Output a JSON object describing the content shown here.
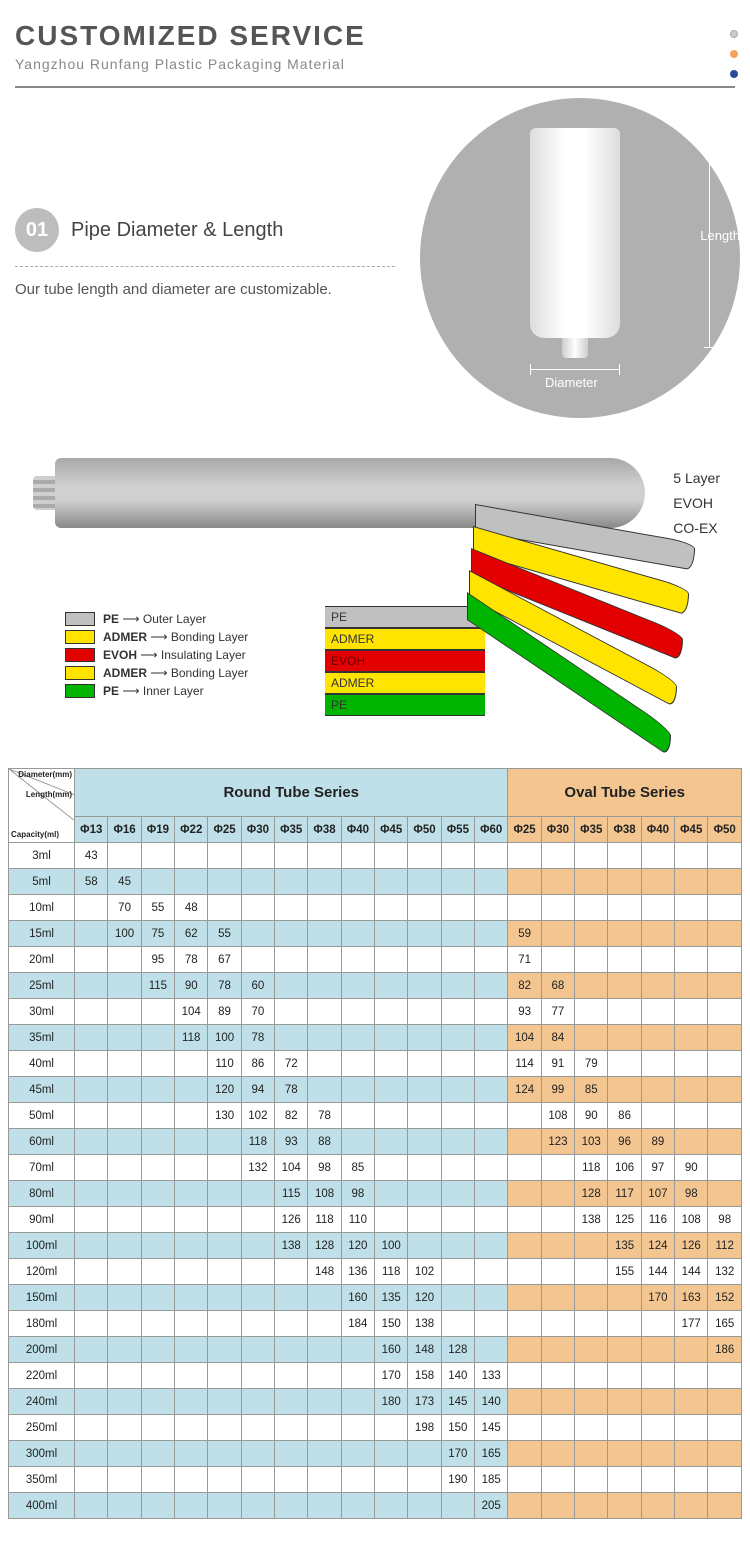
{
  "header": {
    "title": "CUSTOMIZED SERVICE",
    "subtitle": "Yangzhou Runfang Plastic Packaging Material"
  },
  "dots_colors": [
    "#cccccc",
    "#f5a35c",
    "#2a4b9b"
  ],
  "section1": {
    "badge": "01",
    "title": "Pipe Diameter & Length",
    "desc": "Our tube length and diameter are customizable.",
    "length_label": "Length",
    "diameter_label": "Diameter"
  },
  "diagram": {
    "side_labels": [
      "5 Layer",
      "EVOH",
      "CO-EX"
    ],
    "layer_names": [
      "PE",
      "ADMER",
      "EVOH",
      "ADMER",
      "PE"
    ],
    "layer_colors": [
      "#c0c0c0",
      "#ffe400",
      "#e30000",
      "#ffe400",
      "#00b400"
    ],
    "legend": [
      {
        "code": "PE",
        "desc": "Outer Layer",
        "color": "#c0c0c0"
      },
      {
        "code": "ADMER",
        "desc": "Bonding Layer",
        "color": "#ffe400"
      },
      {
        "code": "EVOH",
        "desc": "Insulating Layer",
        "color": "#e30000"
      },
      {
        "code": "ADMER",
        "desc": "Bonding Layer",
        "color": "#ffe400"
      },
      {
        "code": "PE",
        "desc": "Inner Layer",
        "color": "#00b400"
      }
    ]
  },
  "table": {
    "corner_labels": [
      "Diameter(mm)",
      "Length(mm)",
      "Capacity(ml)"
    ],
    "groups": [
      {
        "name": "Round Tube Series",
        "span": 13,
        "bg": "#bfe0e8",
        "alt": "#ffffff"
      },
      {
        "name": "Oval Tube Series",
        "span": 7,
        "bg": "#f3c691",
        "alt": "#ffffff"
      }
    ],
    "round_cols": [
      "Φ13",
      "Φ16",
      "Φ19",
      "Φ22",
      "Φ25",
      "Φ30",
      "Φ35",
      "Φ38",
      "Φ40",
      "Φ45",
      "Φ50",
      "Φ55",
      "Φ60"
    ],
    "oval_cols": [
      "Φ25",
      "Φ30",
      "Φ35",
      "Φ38",
      "Φ40",
      "Φ45",
      "Φ50"
    ],
    "rows": [
      {
        "cap": "3ml",
        "r": [
          43,
          "",
          "",
          "",
          "",
          "",
          "",
          "",
          "",
          "",
          "",
          "",
          ""
        ],
        "o": [
          "",
          "",
          "",
          "",
          "",
          "",
          ""
        ]
      },
      {
        "cap": "5ml",
        "r": [
          58,
          45,
          "",
          "",
          "",
          "",
          "",
          "",
          "",
          "",
          "",
          "",
          ""
        ],
        "o": [
          "",
          "",
          "",
          "",
          "",
          "",
          ""
        ]
      },
      {
        "cap": "10ml",
        "r": [
          "",
          70,
          55,
          48,
          "",
          "",
          "",
          "",
          "",
          "",
          "",
          "",
          ""
        ],
        "o": [
          "",
          "",
          "",
          "",
          "",
          "",
          ""
        ]
      },
      {
        "cap": "15ml",
        "r": [
          "",
          100,
          75,
          62,
          55,
          "",
          "",
          "",
          "",
          "",
          "",
          "",
          ""
        ],
        "o": [
          59,
          "",
          "",
          "",
          "",
          "",
          ""
        ]
      },
      {
        "cap": "20ml",
        "r": [
          "",
          "",
          95,
          78,
          67,
          "",
          "",
          "",
          "",
          "",
          "",
          "",
          ""
        ],
        "o": [
          71,
          "",
          "",
          "",
          "",
          "",
          ""
        ]
      },
      {
        "cap": "25ml",
        "r": [
          "",
          "",
          115,
          90,
          78,
          60,
          "",
          "",
          "",
          "",
          "",
          "",
          ""
        ],
        "o": [
          82,
          68,
          "",
          "",
          "",
          "",
          ""
        ]
      },
      {
        "cap": "30ml",
        "r": [
          "",
          "",
          "",
          104,
          89,
          70,
          "",
          "",
          "",
          "",
          "",
          "",
          ""
        ],
        "o": [
          93,
          77,
          "",
          "",
          "",
          "",
          ""
        ]
      },
      {
        "cap": "35ml",
        "r": [
          "",
          "",
          "",
          118,
          100,
          78,
          "",
          "",
          "",
          "",
          "",
          "",
          ""
        ],
        "o": [
          104,
          84,
          "",
          "",
          "",
          "",
          ""
        ]
      },
      {
        "cap": "40ml",
        "r": [
          "",
          "",
          "",
          "",
          110,
          86,
          72,
          "",
          "",
          "",
          "",
          "",
          ""
        ],
        "o": [
          114,
          91,
          79,
          "",
          "",
          "",
          ""
        ]
      },
      {
        "cap": "45ml",
        "r": [
          "",
          "",
          "",
          "",
          120,
          94,
          78,
          "",
          "",
          "",
          "",
          "",
          ""
        ],
        "o": [
          124,
          99,
          85,
          "",
          "",
          "",
          ""
        ]
      },
      {
        "cap": "50ml",
        "r": [
          "",
          "",
          "",
          "",
          130,
          102,
          82,
          78,
          "",
          "",
          "",
          "",
          ""
        ],
        "o": [
          "",
          108,
          90,
          86,
          "",
          "",
          ""
        ]
      },
      {
        "cap": "60ml",
        "r": [
          "",
          "",
          "",
          "",
          "",
          118,
          93,
          88,
          "",
          "",
          "",
          "",
          ""
        ],
        "o": [
          "",
          123,
          103,
          96,
          89,
          "",
          ""
        ]
      },
      {
        "cap": "70ml",
        "r": [
          "",
          "",
          "",
          "",
          "",
          132,
          104,
          98,
          85,
          "",
          "",
          "",
          ""
        ],
        "o": [
          "",
          "",
          118,
          106,
          97,
          90,
          ""
        ]
      },
      {
        "cap": "80ml",
        "r": [
          "",
          "",
          "",
          "",
          "",
          "",
          115,
          108,
          98,
          "",
          "",
          "",
          ""
        ],
        "o": [
          "",
          "",
          128,
          117,
          107,
          98,
          ""
        ]
      },
      {
        "cap": "90ml",
        "r": [
          "",
          "",
          "",
          "",
          "",
          "",
          126,
          118,
          110,
          "",
          "",
          "",
          ""
        ],
        "o": [
          "",
          "",
          138,
          125,
          116,
          108,
          98
        ]
      },
      {
        "cap": "100ml",
        "r": [
          "",
          "",
          "",
          "",
          "",
          "",
          138,
          128,
          120,
          100,
          "",
          "",
          ""
        ],
        "o": [
          "",
          "",
          "",
          135,
          124,
          126,
          112
        ]
      },
      {
        "cap": "120ml",
        "r": [
          "",
          "",
          "",
          "",
          "",
          "",
          "",
          148,
          136,
          118,
          102,
          "",
          ""
        ],
        "o": [
          "",
          "",
          "",
          155,
          144,
          144,
          132
        ]
      },
      {
        "cap": "150ml",
        "r": [
          "",
          "",
          "",
          "",
          "",
          "",
          "",
          "",
          160,
          135,
          120,
          "",
          ""
        ],
        "o": [
          "",
          "",
          "",
          "",
          170,
          163,
          152
        ]
      },
      {
        "cap": "180ml",
        "r": [
          "",
          "",
          "",
          "",
          "",
          "",
          "",
          "",
          184,
          150,
          138,
          "",
          ""
        ],
        "o": [
          "",
          "",
          "",
          "",
          "",
          177,
          165
        ]
      },
      {
        "cap": "200ml",
        "r": [
          "",
          "",
          "",
          "",
          "",
          "",
          "",
          "",
          "",
          160,
          148,
          128,
          ""
        ],
        "o": [
          "",
          "",
          "",
          "",
          "",
          "",
          186
        ]
      },
      {
        "cap": "220ml",
        "r": [
          "",
          "",
          "",
          "",
          "",
          "",
          "",
          "",
          "",
          170,
          158,
          140,
          133
        ],
        "o": [
          "",
          "",
          "",
          "",
          "",
          "",
          ""
        ]
      },
      {
        "cap": "240ml",
        "r": [
          "",
          "",
          "",
          "",
          "",
          "",
          "",
          "",
          "",
          180,
          173,
          145,
          140
        ],
        "o": [
          "",
          "",
          "",
          "",
          "",
          "",
          ""
        ]
      },
      {
        "cap": "250ml",
        "r": [
          "",
          "",
          "",
          "",
          "",
          "",
          "",
          "",
          "",
          "",
          198,
          150,
          145
        ],
        "o": [
          "",
          "",
          "",
          "",
          "",
          "",
          ""
        ]
      },
      {
        "cap": "300ml",
        "r": [
          "",
          "",
          "",
          "",
          "",
          "",
          "",
          "",
          "",
          "",
          "",
          170,
          165
        ],
        "o": [
          "",
          "",
          "",
          "",
          "",
          "",
          ""
        ]
      },
      {
        "cap": "350ml",
        "r": [
          "",
          "",
          "",
          "",
          "",
          "",
          "",
          "",
          "",
          "",
          "",
          190,
          185
        ],
        "o": [
          "",
          "",
          "",
          "",
          "",
          "",
          ""
        ]
      },
      {
        "cap": "400ml",
        "r": [
          "",
          "",
          "",
          "",
          "",
          "",
          "",
          "",
          "",
          "",
          "",
          "",
          205
        ],
        "o": [
          "",
          "",
          "",
          "",
          "",
          "",
          ""
        ]
      }
    ]
  }
}
